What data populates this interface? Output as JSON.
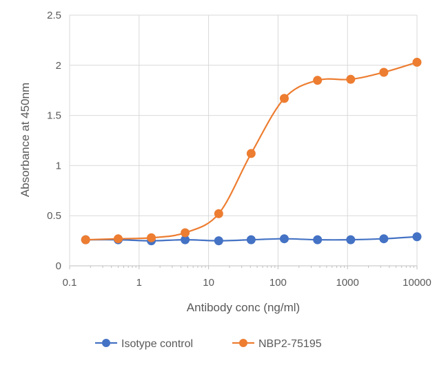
{
  "chart_data": {
    "type": "line",
    "title": "",
    "xlabel": "Antibody conc (ng/ml)",
    "ylabel": "Absorbance at 450nm",
    "x_scale": "log",
    "xlim": [
      0.1,
      10000
    ],
    "ylim": [
      0,
      2.5
    ],
    "x_tick_labels": [
      "0.1",
      "1",
      "10",
      "100",
      "1000",
      "10000"
    ],
    "y_tick_labels": [
      "0",
      "0.5",
      "1",
      "1.5",
      "2",
      "2.5"
    ],
    "grid": true,
    "legend_position": "bottom",
    "x": [
      0.17,
      0.5,
      1.5,
      4.6,
      14,
      41,
      123,
      370,
      1111,
      3333,
      10000
    ],
    "series": [
      {
        "name": "Isotype control",
        "color": "#4472C4",
        "values": [
          0.26,
          0.26,
          0.25,
          0.26,
          0.25,
          0.26,
          0.27,
          0.26,
          0.26,
          0.27,
          0.29
        ]
      },
      {
        "name": "NBP2-75195",
        "color": "#ED7D31",
        "values": [
          0.26,
          0.27,
          0.28,
          0.33,
          0.52,
          1.12,
          1.67,
          1.85,
          1.86,
          1.93,
          2.03
        ]
      }
    ]
  }
}
